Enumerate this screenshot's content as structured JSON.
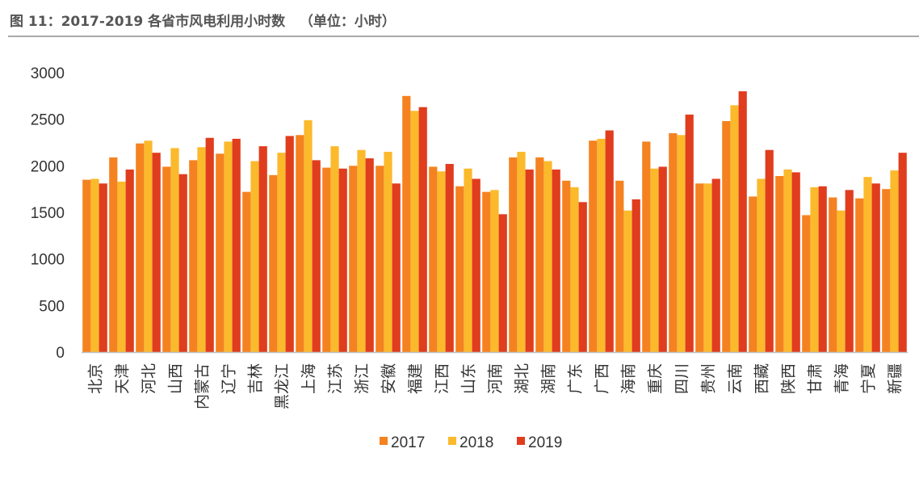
{
  "figure": {
    "title": "图 11：2017-2019 各省市风电利用小时数   （单位：小时）"
  },
  "colors": {
    "s2017": "#f58220",
    "s2018": "#fbb92c",
    "s2019": "#e03c1e",
    "axis": "#bfbfbf",
    "text": "#333333"
  },
  "chart_data": {
    "type": "bar",
    "title": "",
    "xlabel": "",
    "ylabel": "",
    "ylim": [
      0,
      3000
    ],
    "yticks": [
      0,
      500,
      1000,
      1500,
      2000,
      2500,
      3000
    ],
    "grid": false,
    "legend_position": "bottom",
    "categories": [
      "北京",
      "天津",
      "河北",
      "山西",
      "内蒙古",
      "辽宁",
      "吉林",
      "黑龙江",
      "上海",
      "江苏",
      "浙江",
      "安徽",
      "福建",
      "江西",
      "山东",
      "河南",
      "湖北",
      "湖南",
      "广东",
      "广西",
      "海南",
      "重庆",
      "四川",
      "贵州",
      "云南",
      "西藏",
      "陕西",
      "甘肃",
      "青海",
      "宁夏",
      "新疆"
    ],
    "series": [
      {
        "name": "2017",
        "values": [
          1850,
          2090,
          2240,
          1990,
          2060,
          2130,
          1720,
          1900,
          2330,
          1980,
          2000,
          2000,
          2750,
          1990,
          1780,
          1720,
          2090,
          2090,
          1840,
          2270,
          1840,
          2260,
          2350,
          1810,
          2480,
          1670,
          1890,
          1470,
          1660,
          1650,
          1750
        ]
      },
      {
        "name": "2018",
        "values": [
          1860,
          1830,
          2270,
          2190,
          2200,
          2260,
          2050,
          2140,
          2490,
          2210,
          2170,
          2150,
          2590,
          1940,
          1970,
          1740,
          2150,
          2050,
          1770,
          2290,
          1520,
          1970,
          2330,
          1810,
          2650,
          1860,
          1960,
          1770,
          1520,
          1880,
          1950
        ]
      },
      {
        "name": "2019",
        "values": [
          1810,
          1960,
          2140,
          1910,
          2300,
          2290,
          2210,
          2320,
          2060,
          1970,
          2080,
          1810,
          2630,
          2020,
          1860,
          1480,
          1960,
          1960,
          1610,
          2380,
          1640,
          1990,
          2550,
          1860,
          2800,
          2170,
          1930,
          1780,
          1740,
          1810,
          2140
        ]
      }
    ]
  }
}
